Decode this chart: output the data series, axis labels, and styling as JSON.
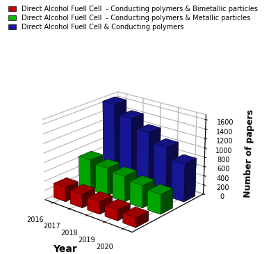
{
  "years": [
    2016,
    2017,
    2018,
    2019,
    2020
  ],
  "year_labels": [
    "2016",
    "2017",
    "2018",
    "2019",
    "2020"
  ],
  "red_values": [
    310,
    290,
    260,
    230,
    200
  ],
  "green_values": [
    660,
    600,
    550,
    480,
    420
  ],
  "blue_values": [
    1650,
    1450,
    1250,
    1050,
    820
  ],
  "red_color": "#cc0000",
  "green_color": "#00bb00",
  "blue_color": "#1a1aaa",
  "red_label": "Direct Alcohol Fuell Cell  - Conducting polymers & Bimetallic particles",
  "green_label": "Direct Alcohol Fuell Cell  - Conducting polymers & Metallic particles",
  "blue_label": "Direct Alcohol Fuell Cell & Conducting polymers",
  "ylabel": "Number of papers",
  "xlabel": "Year",
  "zlim": [
    0,
    1700
  ],
  "zticks": [
    0,
    200,
    400,
    600,
    800,
    1000,
    1200,
    1400,
    1600
  ],
  "bar_width": 0.7,
  "bar_depth": 0.5,
  "elev": 22,
  "azim": -50,
  "legend_fontsize": 7.0,
  "ylabel_fontsize": 9,
  "xlabel_fontsize": 10,
  "tick_fontsize": 7
}
